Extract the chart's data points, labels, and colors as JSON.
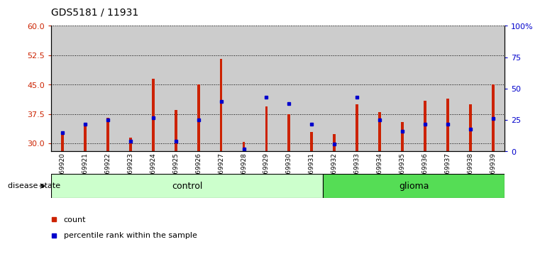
{
  "title": "GDS5181 / 11931",
  "samples": [
    "GSM769920",
    "GSM769921",
    "GSM769922",
    "GSM769923",
    "GSM769924",
    "GSM769925",
    "GSM769926",
    "GSM769927",
    "GSM769928",
    "GSM769929",
    "GSM769930",
    "GSM769931",
    "GSM769932",
    "GSM769933",
    "GSM769934",
    "GSM769935",
    "GSM769936",
    "GSM769937",
    "GSM769938",
    "GSM769939"
  ],
  "bar_values": [
    33.0,
    35.0,
    36.5,
    31.5,
    46.5,
    38.5,
    45.0,
    51.5,
    30.5,
    39.5,
    37.5,
    33.0,
    32.5,
    40.0,
    38.0,
    35.5,
    41.0,
    41.5,
    40.0,
    45.0
  ],
  "percentile_pct": [
    15,
    22,
    25,
    8,
    27,
    8,
    25,
    40,
    2,
    43,
    38,
    22,
    6,
    43,
    25,
    16,
    22,
    22,
    18,
    26
  ],
  "control_count": 12,
  "glioma_count": 8,
  "ylim_left": [
    28,
    60
  ],
  "ylim_right": [
    0,
    100
  ],
  "yticks_left": [
    30,
    37.5,
    45,
    52.5,
    60
  ],
  "yticks_right": [
    0,
    25,
    50,
    75,
    100
  ],
  "bar_color": "#cc2200",
  "dot_color": "#0000cc",
  "control_bg": "#ccffcc",
  "glioma_bg": "#55dd55",
  "col_bg": "#cccccc",
  "legend_count_label": "count",
  "legend_pct_label": "percentile rank within the sample"
}
